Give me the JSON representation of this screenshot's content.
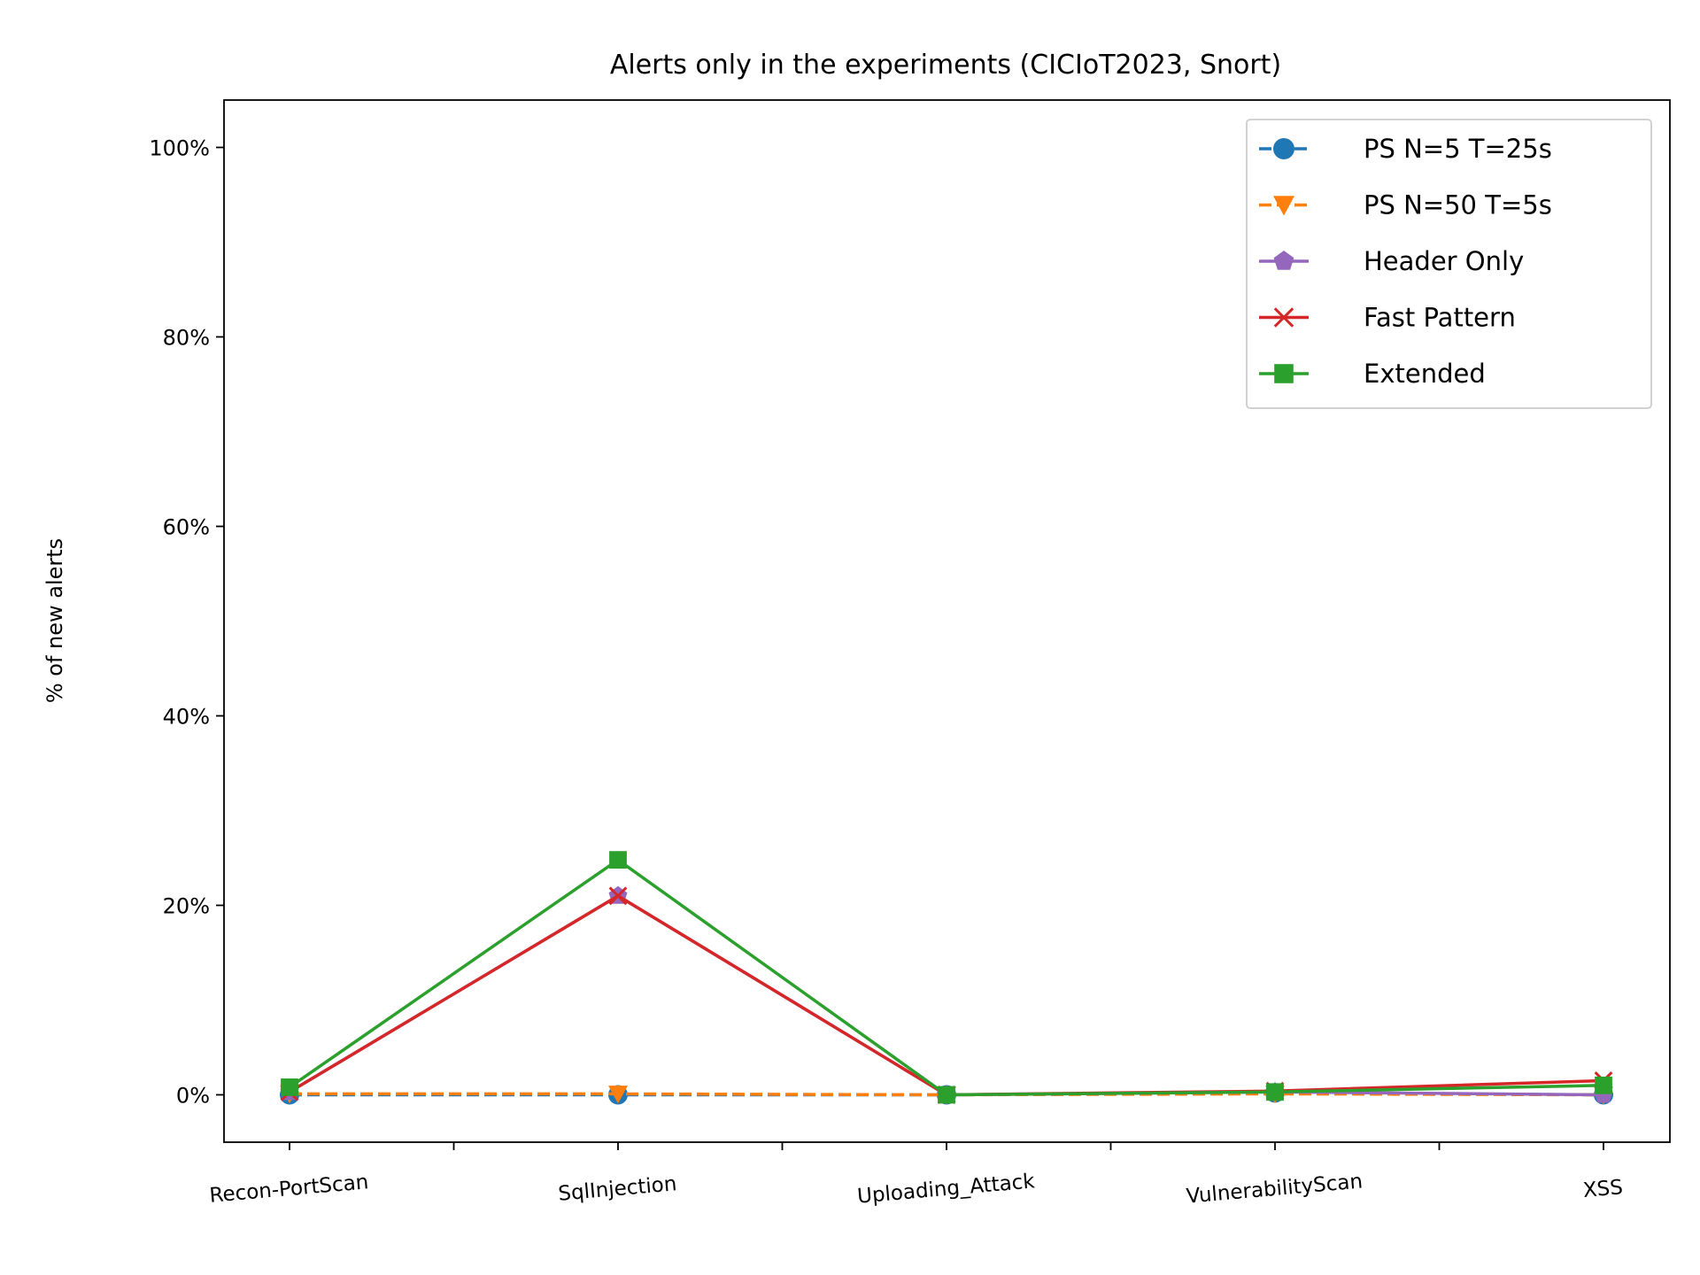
{
  "chart_data": {
    "type": "line",
    "title": "Alerts only in the experiments (CICIoT2023, Snort)",
    "xlabel": "",
    "ylabel": "% of new alerts",
    "categories": [
      "Recon-PortScan",
      "SqlInjection",
      "Uploading_Attack",
      "VulnerabilityScan",
      "XSS"
    ],
    "ylim": [
      -5,
      105
    ],
    "yticks": [
      0,
      20,
      40,
      60,
      80,
      100
    ],
    "ytick_labels": [
      "0%",
      "20%",
      "40%",
      "60%",
      "80%",
      "100%"
    ],
    "grid": false,
    "legend_position": "top-right",
    "series": [
      {
        "name": "PS N=5 T=25s",
        "values": [
          0.0,
          0.0,
          0.0,
          0.2,
          0.0
        ],
        "color": "#1f77b4",
        "marker": "circle",
        "dashed": true
      },
      {
        "name": "PS N=50 T=5s",
        "values": [
          0.1,
          0.1,
          0.0,
          0.1,
          0.0
        ],
        "color": "#ff7f0e",
        "marker": "triangle-down",
        "dashed": true
      },
      {
        "name": "Header Only",
        "values": [
          0.3,
          21.0,
          0.0,
          0.3,
          0.0
        ],
        "color": "#9467bd",
        "marker": "pentagon",
        "dashed": false
      },
      {
        "name": "Fast Pattern",
        "values": [
          0.3,
          21.0,
          0.0,
          0.4,
          1.5
        ],
        "color": "#d62728",
        "marker": "x",
        "dashed": false
      },
      {
        "name": "Extended",
        "values": [
          0.8,
          24.8,
          0.0,
          0.3,
          1.0
        ],
        "color": "#2ca02c",
        "marker": "square",
        "dashed": false
      }
    ]
  }
}
